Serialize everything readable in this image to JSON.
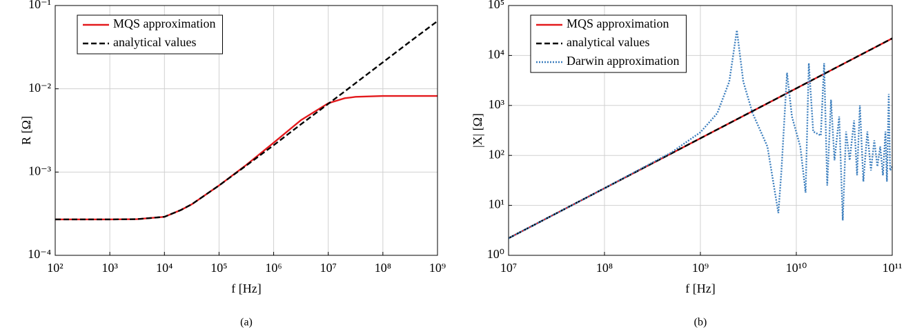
{
  "chart_data": [
    {
      "type": "line",
      "caption": "(a)",
      "x_label": "f [Hz]",
      "y_label": "R [Ω]",
      "xscale": "log",
      "yscale": "log",
      "grid": true,
      "legend": "upper left",
      "xlim": [
        100,
        1000000000
      ],
      "ylim": [
        0.0001,
        0.1
      ],
      "xticks": [
        {
          "value": 100,
          "label": "10²"
        },
        {
          "value": 1000,
          "label": "10³"
        },
        {
          "value": 10000,
          "label": "10⁴"
        },
        {
          "value": 100000,
          "label": "10⁵"
        },
        {
          "value": 1000000,
          "label": "10⁶"
        },
        {
          "value": 10000000,
          "label": "10⁷"
        },
        {
          "value": 100000000,
          "label": "10⁸"
        },
        {
          "value": 1000000000,
          "label": "10⁹"
        }
      ],
      "yticks": [
        {
          "value": 0.0001,
          "label": "10⁻⁴"
        },
        {
          "value": 0.001,
          "label": "10⁻³"
        },
        {
          "value": 0.01,
          "label": "10⁻²"
        },
        {
          "value": 0.1,
          "label": "10⁻¹"
        }
      ],
      "series": [
        {
          "name": "MQS approximation",
          "color": "#e3191c",
          "linestyle": "solid",
          "x": [
            100,
            316,
            1000,
            3162,
            10000,
            20000,
            31623,
            100000,
            316228,
            1000000,
            3162278,
            10000000,
            20000000,
            31622777,
            100000000,
            316227766,
            1000000000
          ],
          "values": [
            0.00027,
            0.00027,
            0.00027,
            0.000272,
            0.00029,
            0.00035,
            0.00041,
            0.00069,
            0.00122,
            0.00225,
            0.0042,
            0.0067,
            0.0077,
            0.008,
            0.0082,
            0.0082,
            0.0082
          ]
        },
        {
          "name": "analytical values",
          "color": "#000000",
          "linestyle": "dashed",
          "x": [
            100,
            316,
            1000,
            3162,
            10000,
            20000,
            31623,
            100000,
            316228,
            1000000,
            3162278,
            10000000,
            20000000,
            31622777,
            100000000,
            316227766,
            1000000000
          ],
          "values": [
            0.00027,
            0.00027,
            0.00027,
            0.000272,
            0.00029,
            0.00035,
            0.00041,
            0.00069,
            0.0012,
            0.0021,
            0.00375,
            0.0066,
            0.0093,
            0.0117,
            0.0208,
            0.037,
            0.065
          ]
        }
      ]
    },
    {
      "type": "line",
      "caption": "(b)",
      "x_label": "f [Hz]",
      "y_label": "|X| [Ω]",
      "xscale": "log",
      "yscale": "log",
      "grid": true,
      "legend": "upper left",
      "xlim": [
        10000000,
        100000000000
      ],
      "ylim": [
        1,
        100000
      ],
      "xticks": [
        {
          "value": 10000000,
          "label": "10⁷"
        },
        {
          "value": 100000000,
          "label": "10⁸"
        },
        {
          "value": 1000000000,
          "label": "10⁹"
        },
        {
          "value": 10000000000,
          "label": "10¹⁰"
        },
        {
          "value": 100000000000,
          "label": "10¹¹"
        }
      ],
      "yticks": [
        {
          "value": 1,
          "label": "10⁰"
        },
        {
          "value": 10,
          "label": "10¹"
        },
        {
          "value": 100,
          "label": "10²"
        },
        {
          "value": 1000,
          "label": "10³"
        },
        {
          "value": 10000,
          "label": "10⁴"
        },
        {
          "value": 100000,
          "label": "10⁵"
        }
      ],
      "series": [
        {
          "name": "MQS approximation",
          "color": "#e3191c",
          "linestyle": "solid",
          "x": [
            10000000,
            100000000,
            1000000000,
            10000000000,
            100000000000
          ],
          "values": [
            2.2,
            22,
            220,
            2200,
            22000
          ]
        },
        {
          "name": "analytical values",
          "color": "#000000",
          "linestyle": "dashed",
          "x": [
            10000000,
            100000000,
            1000000000,
            10000000000,
            100000000000
          ],
          "values": [
            2.2,
            22,
            220,
            2200,
            22000
          ]
        },
        {
          "name": "Darwin approximation",
          "color": "#3a7dbd",
          "linestyle": "dotted",
          "x": [
            10000000,
            100000000,
            500000000,
            1000000000,
            1500000000,
            2000000000,
            2400000000,
            2800000000,
            3500000000,
            5000000000,
            6500000000,
            7000000000,
            8000000000,
            9000000000,
            11000000000,
            12500000000,
            13500000000,
            15000000000,
            18000000000,
            19500000000,
            21000000000,
            23000000000,
            25000000000,
            28000000000,
            30500000000,
            33000000000,
            36000000000,
            40000000000,
            43000000000,
            46000000000,
            50000000000,
            55000000000,
            60000000000,
            65000000000,
            70000000000,
            75000000000,
            80000000000,
            85000000000,
            88000000000,
            92000000000,
            95000000000,
            100000000000
          ],
          "values": [
            2.2,
            22,
            115,
            290,
            700,
            3000,
            32000,
            3000,
            700,
            150,
            7,
            50,
            4500,
            600,
            150,
            18,
            7000,
            300,
            250,
            7000,
            25,
            1300,
            80,
            600,
            5,
            300,
            80,
            500,
            40,
            1000,
            30,
            300,
            50,
            200,
            60,
            150,
            40,
            300,
            30,
            1700,
            50,
            60
          ]
        }
      ]
    }
  ]
}
